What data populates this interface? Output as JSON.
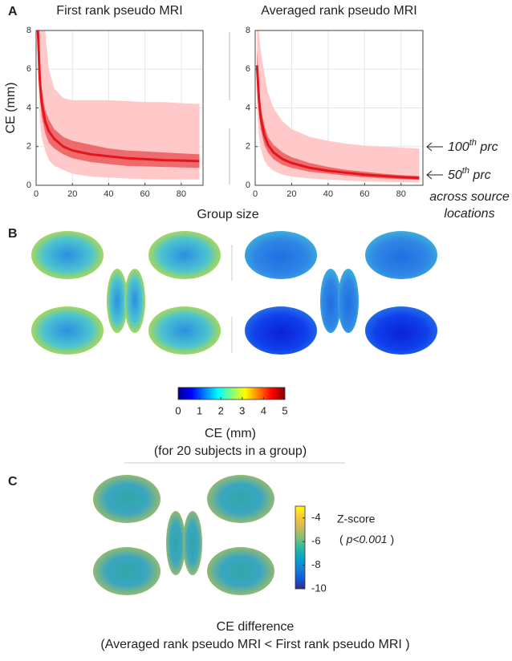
{
  "panels": {
    "a": "A",
    "b": "B",
    "c": "C"
  },
  "x_label": "Group size",
  "chart_data": [
    {
      "type": "band-line",
      "title": "First rank pseudo MRI",
      "y_label": "CE (mm)",
      "x": [
        1,
        2,
        3,
        5,
        7,
        10,
        15,
        20,
        30,
        40,
        50,
        60,
        70,
        80,
        90
      ],
      "series": [
        {
          "color": "#e3161c",
          "values": [
            8,
            5.5,
            4.3,
            3.3,
            2.8,
            2.4,
            2.0,
            1.8,
            1.6,
            1.5,
            1.4,
            1.35,
            1.3,
            1.28,
            1.25
          ],
          "bands": [
            {
              "color": "#ffc9c9",
              "lower": [
                6,
                3.5,
                2.5,
                1.8,
                1.3,
                1.0,
                0.8,
                0.6,
                0.45,
                0.4,
                0.35,
                0.32,
                0.3,
                0.3,
                0.3
              ],
              "upper": [
                8,
                8,
                8,
                8,
                6,
                5,
                4.5,
                4.4,
                4.4,
                4.4,
                4.35,
                4.3,
                4.3,
                4.25,
                4.2
              ]
            },
            {
              "color": "#ee6a6c",
              "lower": [
                7.5,
                4.8,
                3.6,
                2.7,
                2.2,
                1.9,
                1.6,
                1.4,
                1.2,
                1.1,
                1.0,
                0.98,
                0.95,
                0.92,
                0.9
              ],
              "upper": [
                8,
                6.3,
                5,
                3.9,
                3.4,
                2.9,
                2.5,
                2.3,
                2.1,
                1.9,
                1.8,
                1.75,
                1.7,
                1.65,
                1.6
              ]
            }
          ]
        }
      ],
      "xlim": [
        0,
        92
      ],
      "xticks": [
        0,
        20,
        40,
        60,
        80
      ],
      "ylim": [
        0,
        8
      ],
      "yticks": [
        0,
        2,
        4,
        6,
        8
      ],
      "grid": true
    },
    {
      "type": "band-line",
      "title": "Averaged rank pseudo MRI",
      "x": [
        1,
        2,
        3,
        5,
        7,
        10,
        15,
        20,
        30,
        40,
        50,
        60,
        70,
        80,
        90
      ],
      "series": [
        {
          "color": "#e3161c",
          "values": [
            6.2,
            4.5,
            3.5,
            2.6,
            2.1,
            1.7,
            1.35,
            1.15,
            0.9,
            0.75,
            0.65,
            0.55,
            0.48,
            0.42,
            0.38
          ],
          "bands": [
            {
              "color": "#ffc9c9",
              "lower": [
                4,
                2.6,
                1.9,
                1.3,
                1.0,
                0.75,
                0.55,
                0.45,
                0.35,
                0.3,
                0.25,
                0.2,
                0.18,
                0.16,
                0.15
              ],
              "upper": [
                8,
                8,
                7,
                5.8,
                4.8,
                4,
                3.3,
                2.9,
                2.5,
                2.3,
                2.15,
                2.05,
                2.0,
                1.95,
                1.9
              ]
            },
            {
              "color": "#ee6a6c",
              "lower": [
                5.5,
                3.8,
                2.9,
                2.1,
                1.7,
                1.35,
                1.05,
                0.9,
                0.7,
                0.6,
                0.5,
                0.42,
                0.36,
                0.32,
                0.28
              ],
              "upper": [
                7,
                5.2,
                4.1,
                3.1,
                2.5,
                2.1,
                1.7,
                1.45,
                1.15,
                0.95,
                0.8,
                0.7,
                0.6,
                0.53,
                0.48
              ]
            }
          ]
        }
      ],
      "xlim": [
        0,
        92
      ],
      "xticks": [
        0,
        20,
        40,
        60,
        80
      ],
      "ylim": [
        0,
        8
      ],
      "yticks": [
        0,
        2,
        4,
        6,
        8
      ],
      "grid": true
    }
  ],
  "annotations": {
    "upper": {
      "number": "100",
      "suffix": "th",
      "unit": " prc"
    },
    "median": {
      "number": "50",
      "suffix": "th",
      "unit": " prc"
    },
    "note": [
      "across source",
      "locations"
    ]
  },
  "colorbar_b": {
    "lim": [
      0,
      5
    ],
    "ticks": [
      0,
      1,
      2,
      3,
      4,
      5
    ],
    "colormap": [
      "#00008f",
      "#0000ff",
      "#0080ff",
      "#00ffff",
      "#80ff80",
      "#ffff00",
      "#ff8000",
      "#ff0000",
      "#800000"
    ],
    "label": "CE (mm)",
    "sublabel": "(for 20 subjects in a group)"
  },
  "colorbar_c": {
    "lim": [
      -10,
      -3
    ],
    "ticks": [
      -4,
      -6,
      -8,
      -10
    ],
    "colormap": [
      "#352a87",
      "#0f5cdd",
      "#1481d6",
      "#06a4ca",
      "#2eb7a4",
      "#87bf77",
      "#d1bb59",
      "#fec832",
      "#f9fb0e"
    ],
    "label": "Z-score",
    "p_open": "(",
    "p_value": "p<0.001",
    "p_close": ")"
  },
  "caption_c": {
    "title": "CE difference",
    "subtitle": "(Averaged rank pseudo MRI < First rank pseudo MRI )"
  }
}
